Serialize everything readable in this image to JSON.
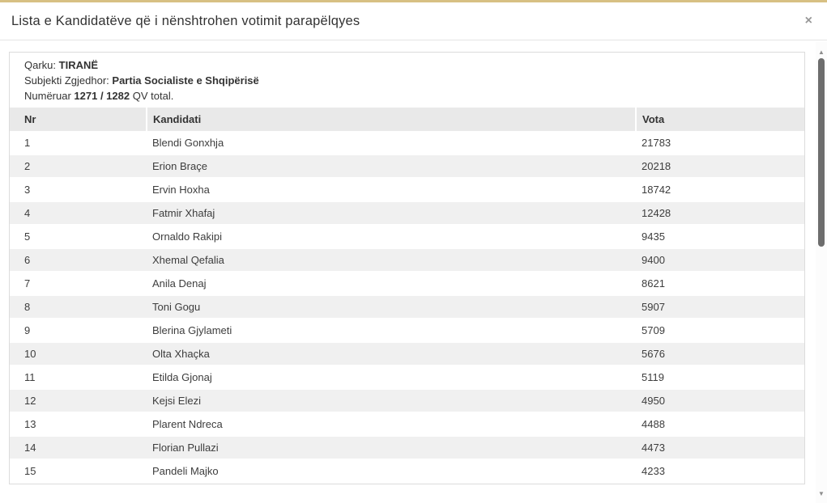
{
  "modal": {
    "title": "Lista e Kandidatëve që i nënshtrohen votimit parapëlqyes"
  },
  "icons": {
    "close": "×",
    "scroll_up": "▲",
    "scroll_down": "▼"
  },
  "info": {
    "line1": {
      "label": "Qarku:",
      "value": "TIRANË"
    },
    "line2": {
      "label": "Subjekti Zgjedhor:",
      "value": "Partia Socialiste e Shqipërisë"
    },
    "line3": {
      "label": "Numëruar",
      "value": "1271 / 1282",
      "suffix": "QV total."
    }
  },
  "table": {
    "columns": [
      "Nr",
      "Kandidati",
      "Vota"
    ],
    "rows": [
      {
        "nr": "1",
        "kandidati": "Blendi Gonxhja",
        "vota": "21783"
      },
      {
        "nr": "2",
        "kandidati": "Erion Braçe",
        "vota": "20218"
      },
      {
        "nr": "3",
        "kandidati": "Ervin Hoxha",
        "vota": "18742"
      },
      {
        "nr": "4",
        "kandidati": "Fatmir Xhafaj",
        "vota": "12428"
      },
      {
        "nr": "5",
        "kandidati": "Ornaldo Rakipi",
        "vota": "9435"
      },
      {
        "nr": "6",
        "kandidati": "Xhemal Qefalia",
        "vota": "9400"
      },
      {
        "nr": "7",
        "kandidati": "Anila Denaj",
        "vota": "8621"
      },
      {
        "nr": "8",
        "kandidati": "Toni Gogu",
        "vota": "5907"
      },
      {
        "nr": "9",
        "kandidati": "Blerina Gjylameti",
        "vota": "5709"
      },
      {
        "nr": "10",
        "kandidati": "Olta Xhaçka",
        "vota": "5676"
      },
      {
        "nr": "11",
        "kandidati": "Etilda Gjonaj",
        "vota": "5119"
      },
      {
        "nr": "12",
        "kandidati": "Kejsi Elezi",
        "vota": "4950"
      },
      {
        "nr": "13",
        "kandidati": "Plarent Ndreca",
        "vota": "4488"
      },
      {
        "nr": "14",
        "kandidati": "Florian Pullazi",
        "vota": "4473"
      },
      {
        "nr": "15",
        "kandidati": "Pandeli Majko",
        "vota": "4233"
      }
    ]
  },
  "colors": {
    "accent_top_border": "#d7c083",
    "table_header_bg": "#e9e9e9",
    "row_stripe_bg": "#f0f0f0",
    "scrollbar_thumb": "#6d6d6d"
  }
}
